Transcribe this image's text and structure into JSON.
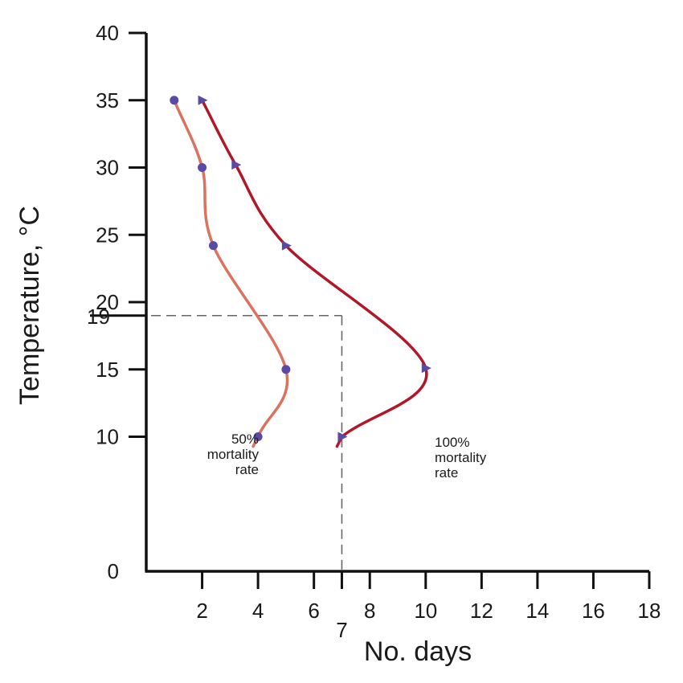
{
  "chart_data": {
    "type": "line",
    "xlabel": "No. days",
    "ylabel": "Temperature, °C",
    "xlim": [
      0,
      18
    ],
    "ylim": [
      0,
      40
    ],
    "x_ticks": [
      2,
      4,
      6,
      8,
      10,
      12,
      14,
      16,
      18
    ],
    "y_ticks": [
      0,
      10,
      15,
      20,
      25,
      30,
      35,
      40
    ],
    "series": [
      {
        "name": "50% mortality rate",
        "color": "#d9735f",
        "marker": "circle",
        "points": [
          [
            1,
            35
          ],
          [
            2,
            30
          ],
          [
            2.4,
            24.2
          ],
          [
            5,
            15
          ],
          [
            4,
            10
          ]
        ]
      },
      {
        "name": "100% mortality rate",
        "color": "#b0182a",
        "marker": "triangle-right",
        "points": [
          [
            2,
            35
          ],
          [
            3.2,
            30.2
          ],
          [
            5,
            24.2
          ],
          [
            10,
            15.1
          ],
          [
            7,
            10
          ]
        ]
      }
    ],
    "marker_color": "#5b49a6",
    "reference_lines": {
      "y_value": 19,
      "y_label": "19",
      "x_value": 7,
      "x_label": "7",
      "style": "dashed",
      "color": "#666666"
    },
    "annotations": [
      {
        "series": 0,
        "lines": [
          "50%",
          "mortality",
          "rate"
        ]
      },
      {
        "series": 1,
        "lines": [
          "100%",
          "mortality",
          "rate"
        ]
      }
    ],
    "grid": false,
    "legend": "none"
  }
}
